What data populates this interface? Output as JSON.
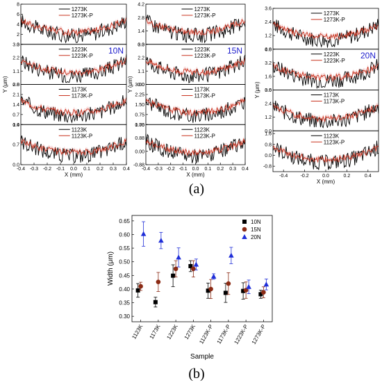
{
  "colors": {
    "reference": "#000000",
    "polished": "#c8321e",
    "band": "#f3c4c4",
    "forceLabel": "#1a1acc",
    "s10": "#000000",
    "s15": "#8b2a14",
    "s20": "#1f2ed8"
  },
  "panel_labels": [
    "(a)",
    "(b)"
  ],
  "chart_data": [
    {
      "type": "line",
      "name": "profiles",
      "xlabel": "X (mm)",
      "ylabel": "Y (μm)",
      "columns": [
        {
          "force": "10N",
          "xlim": [
            -0.4,
            0.4
          ],
          "xticks": [
            "-0.4",
            "-0.3",
            "-0.2",
            "-0.1",
            "0.0",
            "0.1",
            "0.2",
            "0.3",
            "0.4"
          ],
          "rows": [
            {
              "ylim": [
                0,
                8
              ],
              "yticks": [
                "0",
                "2",
                "4",
                "6",
                "8"
              ],
              "series": [
                "1273K",
                "1273K-P"
              ]
            },
            {
              "ylim": [
                0,
                3.3
              ],
              "yticks": [
                "0.0",
                "1.1",
                "2.2",
                "3.3"
              ],
              "series": [
                "1223K",
                "1223K-P"
              ],
              "forceLabel": true
            },
            {
              "ylim": [
                0,
                2.8
              ],
              "yticks": [
                "0.0",
                "0.7",
                "1.4",
                "2.1",
                "2.8"
              ],
              "series": [
                "1173K",
                "1173K-P"
              ]
            },
            {
              "ylim": [
                0,
                1.4
              ],
              "yticks": [
                "0.0",
                "0.7",
                "1.4"
              ],
              "series": [
                "1123K",
                "1123K-P"
              ]
            }
          ]
        },
        {
          "force": "15N",
          "xlim": [
            -0.4,
            0.4
          ],
          "xticks": [
            "-0.4",
            "-0.3",
            "-0.2",
            "-0.1",
            "0.0",
            "0.1",
            "0.2",
            "0.3",
            "0.4"
          ],
          "rows": [
            {
              "ylim": [
                0,
                4.2
              ],
              "yticks": [
                "0.0",
                "1.4",
                "2.8",
                "4.2"
              ],
              "series": [
                "1273K",
                "1273K-P"
              ]
            },
            {
              "ylim": [
                0,
                3.3
              ],
              "yticks": [
                "0.0",
                "1.1",
                "2.2",
                "3.3"
              ],
              "series": [
                "1223K",
                "1223K-P"
              ],
              "forceLabel": true
            },
            {
              "ylim": [
                0,
                3.0
              ],
              "yticks": [
                "0.00",
                "0.75",
                "1.50",
                "2.25",
                "3.00"
              ],
              "series": [
                "1173K",
                "1173K-P"
              ]
            },
            {
              "ylim": [
                -0.88,
                1.76
              ],
              "yticks": [
                "-0.88",
                "0.00",
                "0.88",
                "1.76"
              ],
              "series": [
                "1123K",
                "1123K-P"
              ]
            }
          ]
        },
        {
          "force": "20N",
          "xlim": [
            -0.5,
            0.5
          ],
          "xticks": [
            "-0.4",
            "-0.2",
            "0.0",
            "0.2",
            "0.4"
          ],
          "rows": [
            {
              "ylim": [
                0,
                3.6
              ],
              "yticks": [
                "0.0",
                "1.2",
                "2.4",
                "3.6"
              ],
              "series": [
                "1273K",
                "1273K-P"
              ]
            },
            {
              "ylim": [
                0,
                4.8
              ],
              "yticks": [
                "0.0",
                "1.6",
                "3.2",
                "4.8"
              ],
              "series": [
                "1223K",
                "1223K-P"
              ],
              "forceLabel": true
            },
            {
              "ylim": [
                0,
                3.6
              ],
              "yticks": [
                "0.0",
                "1.2",
                "2.4",
                "3.6"
              ],
              "series": [
                "1173K",
                "1173K-P"
              ]
            },
            {
              "ylim": [
                -1.2,
                1.8
              ],
              "yticks": [
                "-0.8",
                "0.0",
                "0.8",
                "1.6"
              ],
              "series": [
                "1123K",
                "1123K-P"
              ]
            }
          ]
        }
      ]
    },
    {
      "type": "scatter",
      "name": "width",
      "xlabel": "Sample",
      "ylabel": "Width (μm)",
      "ylim": [
        0.28,
        0.67
      ],
      "yticks": [
        "0.30",
        "0.35",
        "0.40",
        "0.45",
        "0.50",
        "0.55",
        "0.60",
        "0.65"
      ],
      "categories": [
        "1123K",
        "1173K",
        "1223K",
        "1273K",
        "1123K-P",
        "1173K-P",
        "1223K-P",
        "1273K-P"
      ],
      "series": [
        {
          "name": "10N",
          "marker": "square",
          "values": [
            0.395,
            0.352,
            0.449,
            0.484,
            0.394,
            0.386,
            0.393,
            0.381
          ],
          "errors": [
            0.025,
            0.018,
            0.04,
            0.02,
            0.028,
            0.035,
            0.03,
            0.015
          ]
        },
        {
          "name": "15N",
          "marker": "circle",
          "values": [
            0.41,
            0.426,
            0.474,
            0.474,
            0.4,
            0.42,
            0.396,
            0.388
          ],
          "errors": [
            0.015,
            0.035,
            0.03,
            0.03,
            0.035,
            0.04,
            0.03,
            0.02
          ]
        },
        {
          "name": "20N",
          "marker": "triangle",
          "values": [
            0.602,
            0.578,
            0.516,
            0.49,
            0.446,
            0.523,
            0.408,
            0.417
          ],
          "errors": [
            0.045,
            0.03,
            0.035,
            0.02,
            0.01,
            0.03,
            0.025,
            0.02
          ]
        }
      ],
      "legend": "top-right"
    }
  ]
}
